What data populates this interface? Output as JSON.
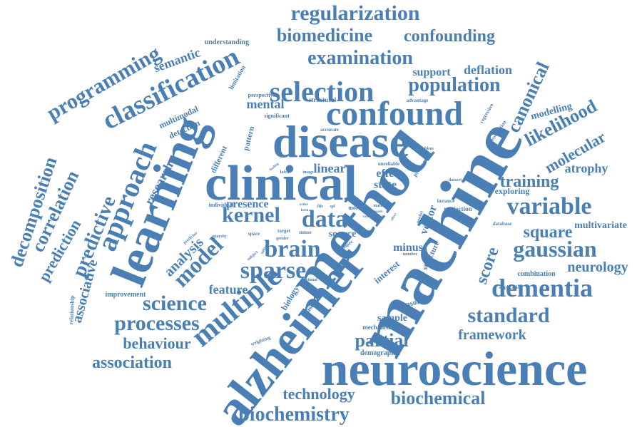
{
  "color": "#4a7fb5",
  "words": [
    "machine",
    "method",
    "alzheimer",
    "neuroscience",
    "clinical",
    "learning",
    "disease",
    "confound",
    "selection",
    "classification",
    "approach",
    "multiple",
    "kernel",
    "data",
    "brain",
    "sparse",
    "model",
    "predictive",
    "decomposition",
    "correlation",
    "prediction",
    "associative",
    "programming",
    "dementia",
    "gaussian",
    "variable",
    "standard",
    "processes",
    "science",
    "biochemistry",
    "biochemical",
    "technology",
    "association",
    "behaviour",
    "partial",
    "framework",
    "regularization",
    "biomedicine",
    "confounding",
    "examination",
    "population",
    "canonical",
    "likelihood",
    "training",
    "molecular",
    "score",
    "square",
    "neurology",
    "feature",
    "analysis",
    "research",
    "semantic",
    "mental",
    "linear",
    "effect",
    "state",
    "presence",
    "source",
    "minus",
    "interest",
    "structure",
    "vector",
    "multivariate",
    "atrophy",
    "modelling",
    "support",
    "deflation",
    "exploring",
    "projection",
    "combination",
    "sample",
    "mechanism",
    "demographic",
    "censored",
    "improvement",
    "relationship",
    "weighting",
    "baseline",
    "biology",
    "optimal",
    "detection",
    "multimodal",
    "limitation",
    "understanding",
    "perspective",
    "structural",
    "significant",
    "pattern",
    "different",
    "accurate",
    "unreliable",
    "present",
    "problem",
    "dataset",
    "application",
    "database",
    "instance",
    "regression",
    "assumption",
    "advantage",
    "individual",
    "target",
    "subject",
    "space",
    "sparsity",
    "predictor",
    "subset",
    "paper",
    "novel",
    "finding",
    "latent",
    "image",
    "label",
    "matrix",
    "order",
    "gender",
    "mmse",
    "number",
    "spl",
    "life",
    "more",
    "form",
    "voxels",
    "effect",
    "predict",
    "rate",
    "low"
  ]
}
